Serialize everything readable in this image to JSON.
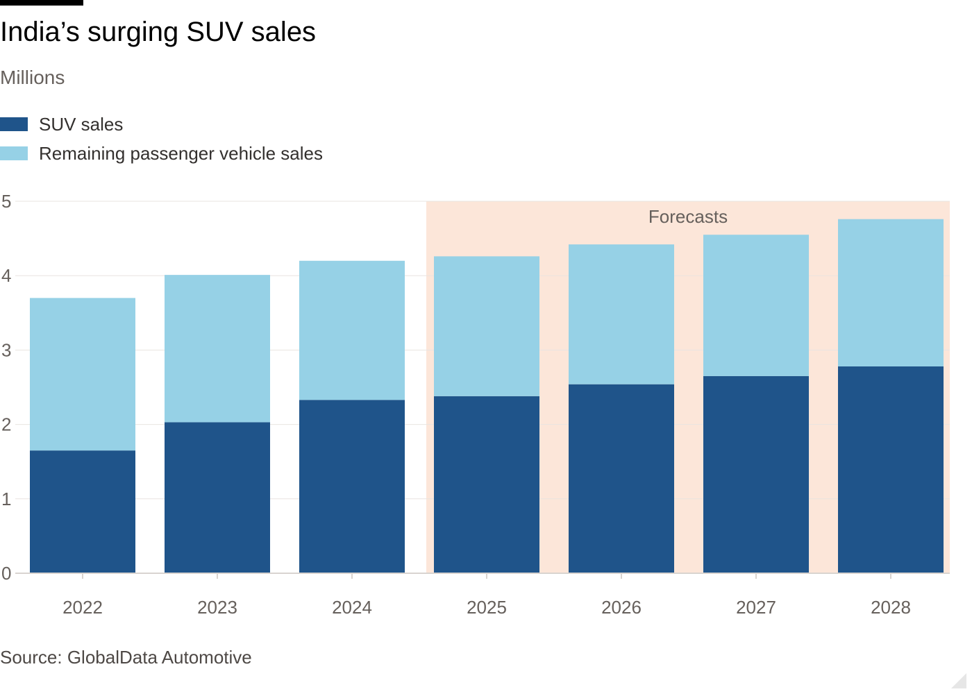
{
  "header": {
    "title": "India’s surging SUV sales",
    "subtitle": "Millions"
  },
  "legend": {
    "items": [
      {
        "label": "SUV sales",
        "color": "#1f548a"
      },
      {
        "label": "Remaining passenger vehicle sales",
        "color": "#96d1e6"
      }
    ]
  },
  "footer": {
    "source": "Source: GlobalData Automotive"
  },
  "chart_data": {
    "type": "bar",
    "stacked": true,
    "title": "India’s surging SUV sales",
    "subtitle": "Millions",
    "xlabel": "",
    "ylabel": "",
    "categories": [
      "2022",
      "2023",
      "2024",
      "2025",
      "2026",
      "2027",
      "2028"
    ],
    "series": [
      {
        "name": "SUV sales",
        "color": "#1f548a",
        "values": [
          1.65,
          2.03,
          2.33,
          2.38,
          2.54,
          2.65,
          2.78
        ]
      },
      {
        "name": "Remaining passenger vehicle sales",
        "color": "#96d1e6",
        "values": [
          2.05,
          1.98,
          1.87,
          1.88,
          1.88,
          1.9,
          1.98
        ]
      }
    ],
    "ylim": [
      0,
      5
    ],
    "yticks": [
      0,
      1,
      2,
      3,
      4,
      5
    ],
    "grid": true,
    "legend_position": "top-left",
    "annotations": [
      {
        "label": "Forecasts",
        "type": "shaded-region",
        "from_category": "2025",
        "to_category": "2028",
        "color": "#fce6d9"
      }
    ]
  }
}
